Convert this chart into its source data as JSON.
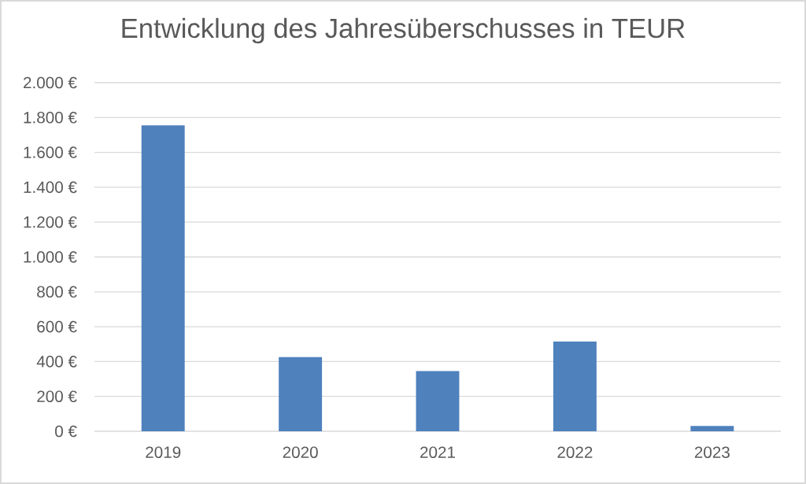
{
  "chart_data": {
    "type": "bar",
    "title": "Entwicklung des Jahresüberschusses in TEUR",
    "categories": [
      "2019",
      "2020",
      "2021",
      "2022",
      "2023"
    ],
    "values": [
      1755,
      425,
      345,
      515,
      30
    ],
    "color": "#4f81bd",
    "ylim": [
      0,
      2000
    ],
    "yticks": [
      {
        "value": 0,
        "label": "0 €"
      },
      {
        "value": 200,
        "label": "200 €"
      },
      {
        "value": 400,
        "label": "400 €"
      },
      {
        "value": 600,
        "label": "600 €"
      },
      {
        "value": 800,
        "label": "800 €"
      },
      {
        "value": 1000,
        "label": "1.000 €"
      },
      {
        "value": 1200,
        "label": "1.200 €"
      },
      {
        "value": 1400,
        "label": "1.400 €"
      },
      {
        "value": 1600,
        "label": "1.600 €"
      },
      {
        "value": 1800,
        "label": "1.800 €"
      },
      {
        "value": 2000,
        "label": "2.000 €"
      }
    ],
    "grid": "y"
  }
}
